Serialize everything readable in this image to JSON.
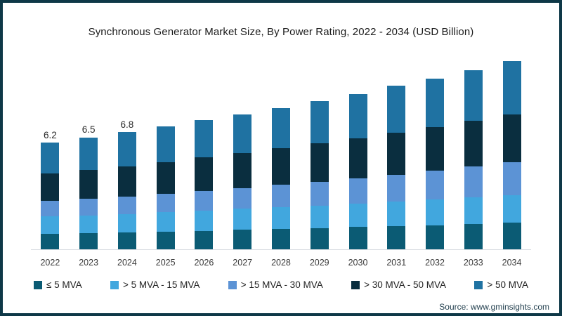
{
  "chart_data": {
    "type": "bar",
    "stacked": true,
    "title": "Synchronous Generator Market Size, By Power Rating, 2022 - 2034 (USD Billion)",
    "categories": [
      "2022",
      "2023",
      "2024",
      "2025",
      "2026",
      "2027",
      "2028",
      "2029",
      "2030",
      "2031",
      "2032",
      "2033",
      "2034"
    ],
    "series": [
      {
        "name": "≤ 5 MVA",
        "color": "#0b5b74",
        "values": [
          0.9,
          0.94,
          0.98,
          1.03,
          1.08,
          1.13,
          1.18,
          1.23,
          1.29,
          1.35,
          1.41,
          1.48,
          1.55
        ]
      },
      {
        "name": "> 5 MVA - 15 MVA",
        "color": "#41a7de",
        "values": [
          1.0,
          1.04,
          1.08,
          1.12,
          1.17,
          1.22,
          1.26,
          1.32,
          1.37,
          1.42,
          1.48,
          1.54,
          1.6
        ]
      },
      {
        "name": "> 15 MVA - 30 MVA",
        "color": "#5c93d5",
        "values": [
          0.9,
          0.96,
          1.02,
          1.08,
          1.15,
          1.22,
          1.3,
          1.39,
          1.47,
          1.57,
          1.67,
          1.78,
          1.9
        ]
      },
      {
        "name": "> 30 MVA - 50 MVA",
        "color": "#0a2e3f",
        "values": [
          1.6,
          1.68,
          1.75,
          1.84,
          1.93,
          2.02,
          2.12,
          2.22,
          2.32,
          2.44,
          2.55,
          2.67,
          2.8
        ]
      },
      {
        "name": "> 50 MVA",
        "color": "#1f72a2",
        "values": [
          1.8,
          1.88,
          1.97,
          2.06,
          2.16,
          2.26,
          2.36,
          2.47,
          2.59,
          2.71,
          2.83,
          2.96,
          3.1
        ]
      }
    ],
    "totals_approx": [
      6.2,
      6.5,
      6.8,
      7.1,
      7.5,
      7.9,
      8.2,
      8.6,
      9.0,
      9.5,
      9.9,
      10.4,
      10.9
    ],
    "visible_total_labels": [
      "6.2",
      "6.5",
      "6.8",
      "",
      "",
      "",
      "",
      "",
      "",
      "",
      "",
      "",
      ""
    ],
    "ylim": [
      0,
      11.2
    ],
    "grid": false,
    "y_axis_shown": false,
    "legend_position": "bottom"
  },
  "source": {
    "text": "Source: www.gminsights.com"
  },
  "colors": {
    "frame_border": "#0e3847",
    "axis_line": "#d9dde2",
    "title_text": "#1b1b1b",
    "tick_text": "#3a3a3a",
    "source_text": "#23404f"
  }
}
